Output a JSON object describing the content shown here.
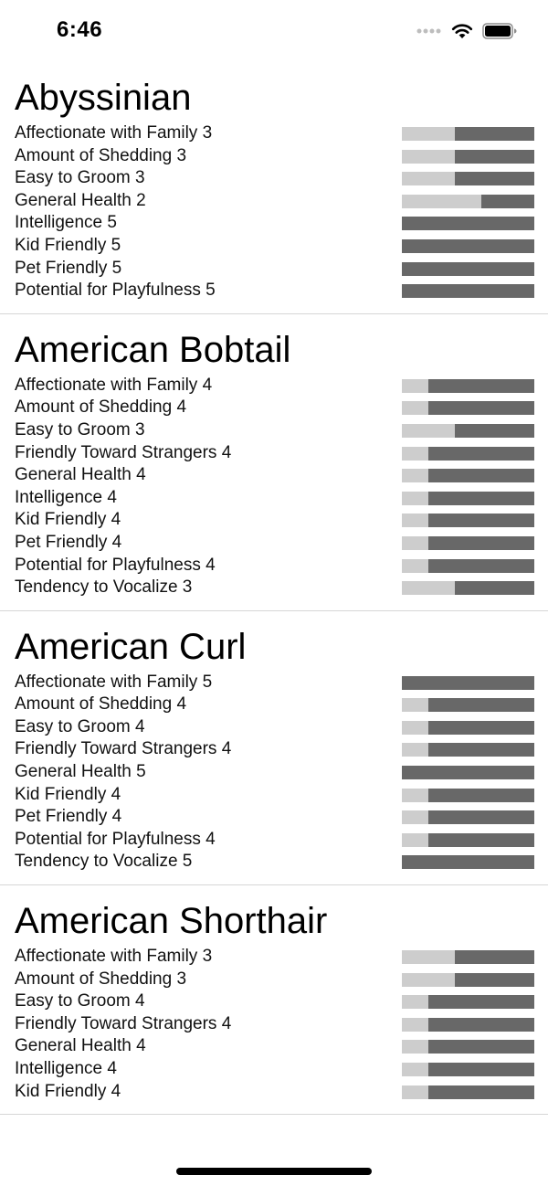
{
  "status_bar": {
    "time": "6:46"
  },
  "breeds": [
    {
      "name": "Abyssinian",
      "attributes": [
        {
          "label": "Affectionate with Family 3",
          "level": 3
        },
        {
          "label": "Amount of Shedding 3",
          "level": 3
        },
        {
          "label": "Easy to Groom 3",
          "level": 3
        },
        {
          "label": "General Health 2",
          "level": 2
        },
        {
          "label": "Intelligence 5",
          "level": 5
        },
        {
          "label": "Kid Friendly 5",
          "level": 5
        },
        {
          "label": "Pet Friendly 5",
          "level": 5
        },
        {
          "label": "Potential for Playfulness 5",
          "level": 5
        }
      ]
    },
    {
      "name": "American Bobtail",
      "attributes": [
        {
          "label": "Affectionate with Family 4",
          "level": 4
        },
        {
          "label": "Amount of Shedding 4",
          "level": 4
        },
        {
          "label": "Easy to Groom 3",
          "level": 3
        },
        {
          "label": "Friendly Toward Strangers 4",
          "level": 4
        },
        {
          "label": "General Health 4",
          "level": 4
        },
        {
          "label": "Intelligence 4",
          "level": 4
        },
        {
          "label": "Kid Friendly 4",
          "level": 4
        },
        {
          "label": "Pet Friendly 4",
          "level": 4
        },
        {
          "label": "Potential for Playfulness 4",
          "level": 4
        },
        {
          "label": "Tendency to Vocalize 3",
          "level": 3
        }
      ]
    },
    {
      "name": "American Curl",
      "attributes": [
        {
          "label": "Affectionate with Family 5",
          "level": 5
        },
        {
          "label": "Amount of Shedding 4",
          "level": 4
        },
        {
          "label": "Easy to Groom 4",
          "level": 4
        },
        {
          "label": "Friendly Toward Strangers 4",
          "level": 4
        },
        {
          "label": "General Health 5",
          "level": 5
        },
        {
          "label": "Kid Friendly 4",
          "level": 4
        },
        {
          "label": "Pet Friendly 4",
          "level": 4
        },
        {
          "label": "Potential for Playfulness 4",
          "level": 4
        },
        {
          "label": "Tendency to Vocalize 5",
          "level": 5
        }
      ]
    },
    {
      "name": "American Shorthair",
      "attributes": [
        {
          "label": "Affectionate with Family 3",
          "level": 3
        },
        {
          "label": "Amount of Shedding 3",
          "level": 3
        },
        {
          "label": "Easy to Groom 4",
          "level": 4
        },
        {
          "label": "Friendly Toward Strangers 4",
          "level": 4
        },
        {
          "label": "General Health 4",
          "level": 4
        },
        {
          "label": "Intelligence 4",
          "level": 4
        },
        {
          "label": "Kid Friendly 4",
          "level": 4
        }
      ]
    }
  ],
  "colors": {
    "bar_track": "#cdcdcd",
    "bar_fill": "#686868",
    "divider": "#d6d6d6"
  },
  "icons": {
    "signal": "cellular-signal-icon",
    "wifi": "wifi-icon",
    "battery": "battery-icon"
  }
}
